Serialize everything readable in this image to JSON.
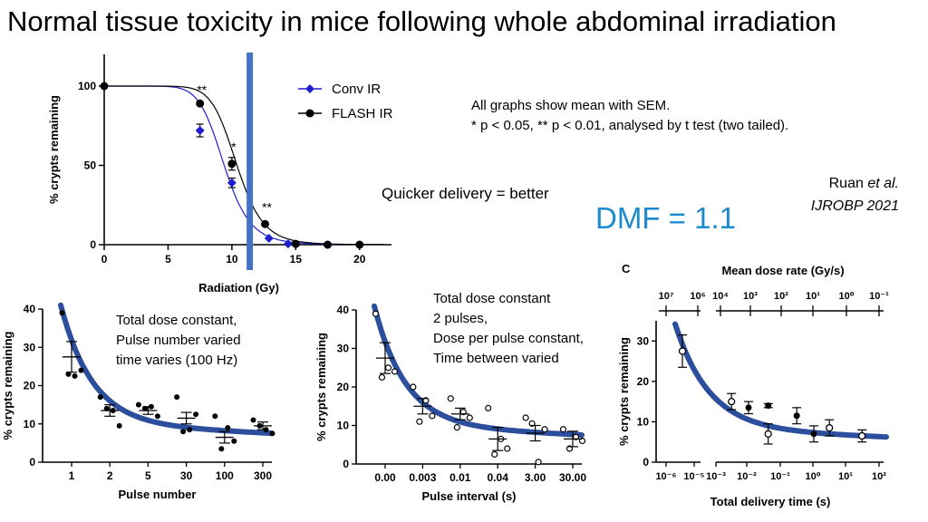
{
  "slide": {
    "title": "Normal tissue toxicity in mice following whole abdominal irradiation",
    "note_line1": "All graphs show mean with SEM.",
    "note_line2": "* p < 0.05, ** p < 0.01, analysed by t test (two tailed).",
    "quicker": "Quicker delivery = better",
    "dmf": "DMF = 1.1",
    "citation_author": "Ruan",
    "citation_etal": "et al.",
    "citation_journal": "IJROBP 2021",
    "colors": {
      "conv": "#1f1fd0",
      "flash": "#000000",
      "fit": "#2b4f9c",
      "vline": "#4472c4",
      "dmf": "#1b8bcf"
    }
  },
  "chart_data": [
    {
      "id": "dose_response",
      "type": "scatter",
      "xlabel": "Radiation (Gy)",
      "ylabel": "% crypts remaining",
      "xlim": [
        0,
        22.5
      ],
      "ylim": [
        0,
        120
      ],
      "xticks": [
        0,
        5,
        10,
        15,
        20
      ],
      "yticks": [
        0,
        50,
        100
      ],
      "vertical_line_x": 11.4,
      "legend": [
        "Conv IR",
        "FLASH IR"
      ],
      "series": [
        {
          "name": "Conv IR",
          "x": [
            0,
            7.5,
            10,
            12.9,
            14.4
          ],
          "y": [
            100,
            72,
            39,
            4,
            0.5
          ],
          "err": [
            0,
            4,
            3,
            0,
            0
          ]
        },
        {
          "name": "FLASH IR",
          "x": [
            0,
            7.5,
            10,
            12.6,
            15,
            17.5,
            20
          ],
          "y": [
            100,
            89,
            51,
            13,
            0.5,
            0,
            0
          ],
          "err": [
            0,
            0,
            4,
            0,
            0,
            0,
            0
          ]
        }
      ],
      "annotations": [
        {
          "text": "**",
          "x": 7.5,
          "y": 95
        },
        {
          "text": "*",
          "x": 10,
          "y": 59
        },
        {
          "text": "**",
          "x": 12.6,
          "y": 21
        }
      ]
    },
    {
      "id": "pulse_number",
      "type": "scatter",
      "xlabel": "Pulse number",
      "ylabel": "% crypts remaining",
      "categories": [
        "1",
        "2",
        "5",
        "30",
        "100",
        "300"
      ],
      "ylim": [
        0,
        40
      ],
      "yticks": [
        0,
        10,
        20,
        30,
        40
      ],
      "text_box": [
        "Total dose constant,",
        "Pulse number varied",
        "time varies (100 Hz)"
      ],
      "means": [
        27.5,
        13.5,
        13.5,
        11.5,
        6.5,
        9.5
      ],
      "errs": [
        4,
        1.5,
        1,
        1.5,
        1.5,
        1
      ],
      "points": [
        [
          39,
          23,
          22.5,
          24
        ],
        [
          17,
          14,
          13.5,
          9.5
        ],
        [
          15,
          14,
          14.5,
          12
        ],
        [
          17,
          8,
          8.5,
          12.5
        ],
        [
          12,
          3.5,
          9,
          5.5
        ],
        [
          11,
          9.5,
          8.5,
          7.5
        ]
      ]
    },
    {
      "id": "pulse_interval",
      "type": "scatter",
      "xlabel": "Pulse interval (s)",
      "ylabel": "% crypts remaining",
      "categories": [
        "0.00",
        "0.003",
        "0.01",
        "0.04",
        "3.00",
        "30.00"
      ],
      "ylim": [
        0,
        40
      ],
      "yticks": [
        0,
        10,
        20,
        30,
        40
      ],
      "text_box": [
        "Total dose constant",
        "2 pulses,",
        "Dose per pulse constant,",
        "Time between varied"
      ],
      "means": [
        27.5,
        15,
        13,
        6.5,
        8,
        6.5
      ],
      "errs": [
        4,
        2,
        1.5,
        3,
        2,
        2
      ],
      "points": [
        [
          39,
          22.5,
          25,
          24
        ],
        [
          20,
          11,
          16.5,
          12.5
        ],
        [
          17,
          9.5,
          13.5,
          12
        ],
        [
          14.5,
          2.5,
          6.5,
          4
        ],
        [
          12,
          10.5,
          0.5,
          9
        ],
        [
          9,
          4,
          7,
          6
        ]
      ]
    },
    {
      "id": "delivery_time",
      "type": "scatter",
      "panel_letter": "C",
      "xlabel": "Total delivery time (s)",
      "ylabel": "% crypts remaining",
      "top_axis_label": "Mean dose rate (Gy/s)",
      "top_ticks": [
        "10⁷",
        "10⁶",
        "10⁴",
        "10³",
        "10²",
        "10¹",
        "10⁰",
        "10⁻¹"
      ],
      "bottom_ticks": [
        "10⁻⁶",
        "10⁻⁵",
        "10⁻³",
        "10⁻²",
        "10⁻¹",
        "10⁰",
        "10¹",
        "10²"
      ],
      "ylim": [
        0,
        35
      ],
      "yticks": [
        0,
        10,
        20,
        30
      ],
      "points": [
        {
          "x": "1e-6",
          "y": 27.5,
          "err": 4,
          "open": true
        },
        {
          "x": "0.003",
          "y": 15,
          "err": 2,
          "open": true
        },
        {
          "x": "0.01",
          "y": 13.5,
          "err": 1.5,
          "open": false
        },
        {
          "x": "0.04",
          "y": 14,
          "err": 0.5,
          "open": false
        },
        {
          "x": "0.04",
          "y": 7,
          "err": 2.5,
          "open": true
        },
        {
          "x": "0.3",
          "y": 11.5,
          "err": 2,
          "open": false
        },
        {
          "x": "1",
          "y": 7,
          "err": 2,
          "open": false
        },
        {
          "x": "3",
          "y": 8.5,
          "err": 2,
          "open": true
        },
        {
          "x": "30",
          "y": 6.5,
          "err": 1.5,
          "open": true
        }
      ]
    }
  ]
}
